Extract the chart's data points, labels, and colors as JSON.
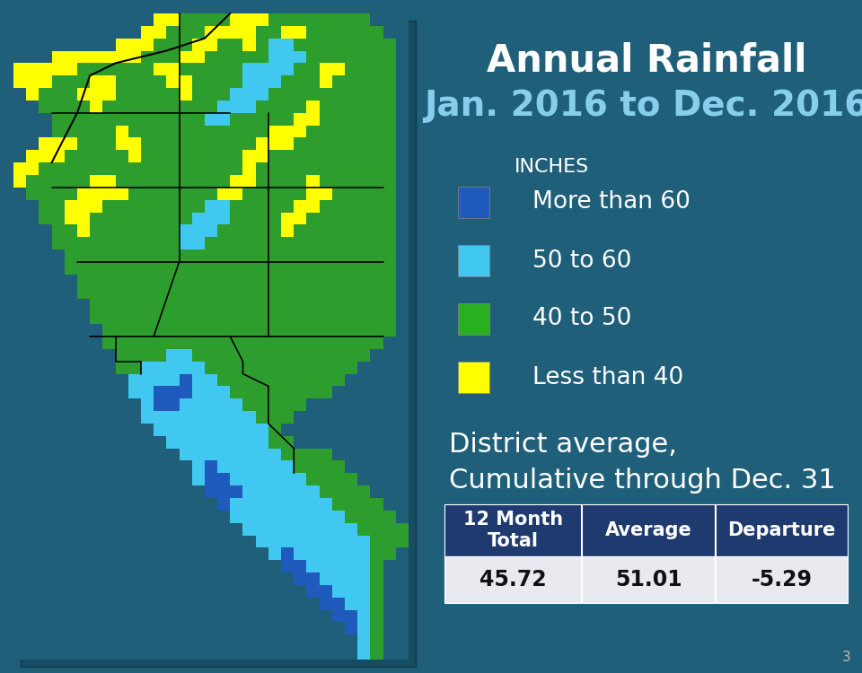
{
  "title_line1": "Annual Rainfall",
  "title_line2": "Jan. 2016 to Dec. 2016",
  "background_color": "#1f5f7a",
  "legend_label": "INCHES",
  "legend_items": [
    {
      "color": "#1e5bbc",
      "label": "More than 60"
    },
    {
      "color": "#40c8f0",
      "label": "50 to 60"
    },
    {
      "color": "#28b020",
      "label": "40 to 50"
    },
    {
      "color": "#ffff00",
      "label": "Less than 40"
    }
  ],
  "district_text_line1": "District average,",
  "district_text_line2": "Cumulative through Dec. 31",
  "table_header": [
    "12 Month\nTotal",
    "Average",
    "Departure"
  ],
  "table_values": [
    "45.72",
    "51.01",
    "-5.29"
  ],
  "table_header_bg": "#1e3a6e",
  "table_value_bg": "#e8eaf0",
  "title_color": "#ffffff",
  "subtitle_color": "#87ceeb",
  "text_color": "#ffffff",
  "page_number": "3",
  "bg_color": "#1f5f7a",
  "title_fontsize": 30,
  "subtitle_fontsize": 28,
  "legend_label_fontsize": 16,
  "legend_item_fontsize": 19,
  "district_text_fontsize": 22,
  "table_header_fontsize": 15,
  "table_value_fontsize": 17
}
